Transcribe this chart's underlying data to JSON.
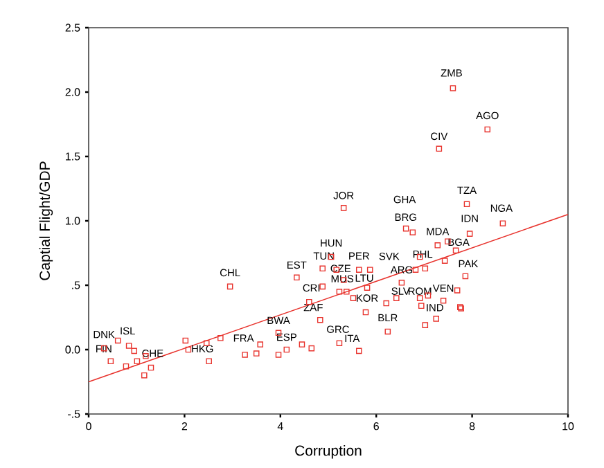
{
  "chart_data": {
    "type": "scatter",
    "xlabel": "Corruption",
    "ylabel": "Captial Flight/GDP",
    "xlim": [
      0,
      10
    ],
    "ylim": [
      -0.5,
      2.5
    ],
    "xticks": [
      0,
      2,
      4,
      6,
      8,
      10
    ],
    "yticks": [
      {
        "value": -0.5,
        "label": "-.5"
      },
      {
        "value": 0,
        "label": "0.0"
      },
      {
        "value": 0.5,
        "label": ".5"
      },
      {
        "value": 1,
        "label": "1.0"
      },
      {
        "value": 1.5,
        "label": "1.5"
      },
      {
        "value": 2,
        "label": "2.0"
      },
      {
        "value": 2.5,
        "label": "2.5"
      }
    ],
    "marker": "square",
    "series": [
      {
        "color": "#e8332d",
        "x": [
          7.6,
          8.32,
          7.31,
          5.32,
          7.89,
          8.64,
          6.62,
          6.76,
          7.95,
          7.28,
          7.49,
          7.66,
          7.43,
          7.86,
          7.69,
          7.75,
          7.77,
          6.91,
          7.02,
          6.82,
          6.53,
          6.42,
          6.21,
          6.91,
          7.08,
          6.94,
          7.4,
          7.25,
          7.02,
          6.24,
          5.78,
          5.52,
          5.38,
          5.23,
          5.81,
          5.32,
          5.64,
          5.87,
          5.17,
          4.88,
          5.06,
          4.34,
          4.88,
          4.6,
          4.83,
          5.23,
          5.64,
          3.96,
          4.13,
          3.96,
          4.45,
          4.65,
          3.58,
          3.5,
          2.95,
          0.61,
          0.32,
          0.46,
          0.84,
          0.95,
          0.78,
          1.01,
          1.16,
          1.3,
          1.19,
          2.02,
          2.08,
          2.46,
          2.51,
          2.75,
          3.26
        ],
        "values": [
          2.03,
          1.71,
          1.56,
          1.1,
          1.13,
          0.98,
          0.94,
          0.91,
          0.9,
          0.81,
          0.84,
          0.77,
          0.69,
          0.57,
          0.46,
          0.33,
          0.32,
          0.72,
          0.63,
          0.62,
          0.52,
          0.4,
          0.36,
          0.4,
          0.42,
          0.34,
          0.38,
          0.24,
          0.19,
          0.14,
          0.29,
          0.4,
          0.45,
          0.45,
          0.48,
          0.54,
          0.62,
          0.62,
          0.62,
          0.63,
          0.72,
          0.56,
          0.49,
          0.37,
          0.23,
          0.05,
          -0.01,
          0.13,
          0.0,
          -0.04,
          0.04,
          0.01,
          0.04,
          -0.03,
          0.49,
          0.07,
          0.01,
          -0.09,
          0.03,
          -0.01,
          -0.13,
          -0.09,
          -0.2,
          -0.14,
          -0.05,
          0.07,
          0.0,
          0.05,
          -0.09,
          0.09,
          -0.04
        ]
      },
      {
        "type": "line",
        "color": "#e8332d",
        "marker": "none",
        "x": [
          0,
          10
        ],
        "values": [
          -0.25,
          1.05
        ]
      }
    ],
    "annotations": [
      {
        "text": "ZMB",
        "x": 7.6,
        "y": 2.03
      },
      {
        "text": "AGO",
        "x": 8.32,
        "y": 1.71
      },
      {
        "text": "CIV",
        "x": 7.31,
        "y": 1.56
      },
      {
        "text": "JOR",
        "x": 5.32,
        "y": 1.1
      },
      {
        "text": "GHA",
        "x": 6.62,
        "y": 0.94
      },
      {
        "text": "BRG",
        "x": 6.76,
        "y": 0.91
      },
      {
        "text": "TZA",
        "x": 7.89,
        "y": 1.13
      },
      {
        "text": "IDN",
        "x": 7.95,
        "y": 0.9
      },
      {
        "text": "NGA",
        "x": 8.64,
        "y": 0.98
      },
      {
        "text": "MDA",
        "x": 7.28,
        "y": 0.81
      },
      {
        "text": "BGA",
        "x": 7.66,
        "y": 0.77
      },
      {
        "text": "HUN",
        "x": 5.06,
        "y": 0.72
      },
      {
        "text": "TUN",
        "x": 4.88,
        "y": 0.63
      },
      {
        "text": "PER",
        "x": 5.64,
        "y": 0.62
      },
      {
        "text": "SVK",
        "x": 6.53,
        "y": 0.52
      },
      {
        "text": "PHL",
        "x": 6.91,
        "y": 0.72
      },
      {
        "text": "EST",
        "x": 4.34,
        "y": 0.56
      },
      {
        "text": "CZE",
        "x": 5.17,
        "y": 0.62
      },
      {
        "text": "ARG",
        "x": 6.82,
        "y": 0.62
      },
      {
        "text": "PAK",
        "x": 7.86,
        "y": 0.57
      },
      {
        "text": "MUS",
        "x": 5.32,
        "y": 0.54
      },
      {
        "text": "LTU",
        "x": 5.81,
        "y": 0.48
      },
      {
        "text": "CRI",
        "x": 4.88,
        "y": 0.49
      },
      {
        "text": "SLV",
        "x": 6.42,
        "y": 0.4
      },
      {
        "text": "ROM",
        "x": 6.91,
        "y": 0.4
      },
      {
        "text": "VEN",
        "x": 7.4,
        "y": 0.38
      },
      {
        "text": "KOR",
        "x": 5.52,
        "y": 0.4
      },
      {
        "text": "ZAF",
        "x": 4.6,
        "y": 0.37
      },
      {
        "text": "IND",
        "x": 7.25,
        "y": 0.24
      },
      {
        "text": "BWA",
        "x": 3.96,
        "y": 0.13
      },
      {
        "text": "BLR",
        "x": 6.24,
        "y": 0.14
      },
      {
        "text": "GRC",
        "x": 5.23,
        "y": 0.05
      },
      {
        "text": "FRA",
        "x": 3.26,
        "y": -0.04
      },
      {
        "text": "ESP",
        "x": 4.13,
        "y": 0.0
      },
      {
        "text": "ITA",
        "x": 5.64,
        "y": -0.01
      },
      {
        "text": "CHL",
        "x": 2.95,
        "y": 0.49
      },
      {
        "text": "DNK",
        "x": 0.32,
        "y": 0.01
      },
      {
        "text": "ISL",
        "x": 0.61,
        "y": 0.07
      },
      {
        "text": "FIN",
        "x": 0.46,
        "y": -0.09
      },
      {
        "text": "CHE",
        "x": 1.19,
        "y": -0.05
      },
      {
        "text": "HKG",
        "x": 2.46,
        "y": 0.05
      }
    ]
  }
}
